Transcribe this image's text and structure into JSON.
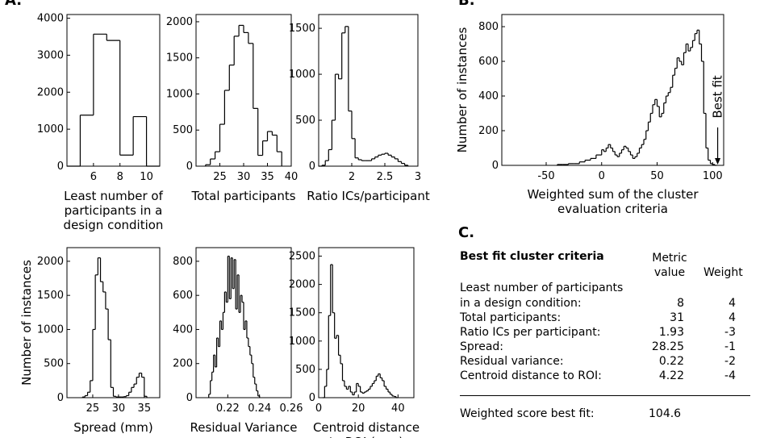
{
  "panel_labels": {
    "a": "A.",
    "b": "B.",
    "c": "C."
  },
  "chart_data": [
    {
      "id": "least-participants",
      "type": "histogram",
      "xlabel": [
        "Least number of",
        "participants in a",
        "design condition"
      ],
      "ylabel": "",
      "xlim": [
        4,
        11
      ],
      "ylim": [
        0,
        4100
      ],
      "xticks": [
        6,
        8,
        10
      ],
      "yticks": [
        0,
        1000,
        2000,
        3000,
        4000
      ],
      "bin_edges": [
        4,
        5,
        6,
        7,
        8,
        9,
        10,
        11
      ],
      "counts": [
        0,
        1380,
        3570,
        3400,
        300,
        1340,
        0
      ]
    },
    {
      "id": "total-participants",
      "type": "histogram",
      "xlabel": [
        "Total participants"
      ],
      "ylabel": "",
      "xlim": [
        20,
        40
      ],
      "ylim": [
        0,
        2100
      ],
      "xticks": [
        25,
        30,
        35,
        40
      ],
      "yticks": [
        0,
        500,
        1000,
        1500,
        2000
      ],
      "bin_edges": [
        22,
        23,
        24,
        25,
        26,
        27,
        28,
        29,
        30,
        31,
        32,
        33,
        34,
        35,
        36,
        37,
        38
      ],
      "counts": [
        20,
        100,
        200,
        580,
        1050,
        1400,
        1800,
        1950,
        1850,
        1700,
        800,
        150,
        350,
        480,
        430,
        200
      ]
    },
    {
      "id": "ratio-ics",
      "type": "histogram",
      "xlabel": [
        "Ratio ICs/participant"
      ],
      "ylabel": "",
      "xlim": [
        1.5,
        3
      ],
      "ylim": [
        0,
        1650
      ],
      "xticks": [
        2,
        2.5,
        3
      ],
      "yticks": [
        0,
        500,
        1000,
        1500
      ],
      "bin_edges": [
        1.5,
        1.55,
        1.6,
        1.65,
        1.7,
        1.75,
        1.8,
        1.85,
        1.9,
        1.95,
        2.0,
        2.05,
        2.1,
        2.15,
        2.2,
        2.25,
        2.3,
        2.35,
        2.4,
        2.45,
        2.5,
        2.55,
        2.6,
        2.65,
        2.7,
        2.75,
        2.8,
        2.85
      ],
      "counts": [
        0,
        10,
        60,
        180,
        500,
        1000,
        950,
        1450,
        1520,
        600,
        300,
        90,
        70,
        60,
        60,
        60,
        80,
        100,
        120,
        130,
        140,
        120,
        100,
        80,
        50,
        30,
        10
      ]
    },
    {
      "id": "spread",
      "type": "histogram",
      "xlabel": [
        "Spread (mm)"
      ],
      "ylabel": "Number of instances",
      "xlim": [
        20,
        38
      ],
      "ylim": [
        0,
        2200
      ],
      "xticks": [
        25,
        30,
        35
      ],
      "yticks": [
        0,
        500,
        1000,
        1500,
        2000
      ],
      "bin_edges": [
        23,
        23.5,
        24,
        24.5,
        25,
        25.5,
        26,
        26.5,
        27,
        27.5,
        28,
        28.5,
        29,
        29.5,
        30,
        30.5,
        31,
        31.5,
        32,
        32.5,
        33,
        33.5,
        34,
        34.5,
        35,
        35.5
      ],
      "counts": [
        10,
        30,
        80,
        250,
        1000,
        1800,
        2050,
        1700,
        1550,
        1300,
        850,
        150,
        20,
        10,
        10,
        10,
        15,
        30,
        80,
        150,
        200,
        300,
        360,
        300,
        20
      ]
    },
    {
      "id": "residual-variance",
      "type": "histogram",
      "xlabel": [
        "Residual Variance"
      ],
      "ylabel": "",
      "xlim": [
        0.2,
        0.26
      ],
      "ylim": [
        0,
        880
      ],
      "xticks": [
        0.22,
        0.24,
        0.26
      ],
      "yticks": [
        0,
        200,
        400,
        600,
        800
      ],
      "bin_edges": [
        0.208,
        0.209,
        0.21,
        0.211,
        0.212,
        0.213,
        0.214,
        0.215,
        0.216,
        0.217,
        0.218,
        0.219,
        0.22,
        0.221,
        0.222,
        0.223,
        0.224,
        0.225,
        0.226,
        0.227,
        0.228,
        0.229,
        0.23,
        0.231,
        0.232,
        0.233,
        0.234,
        0.235,
        0.236,
        0.237,
        0.238,
        0.239,
        0.24
      ],
      "counts": [
        20,
        100,
        150,
        250,
        180,
        350,
        300,
        450,
        400,
        500,
        620,
        560,
        830,
        580,
        820,
        640,
        810,
        520,
        720,
        500,
        600,
        560,
        400,
        450,
        350,
        300,
        250,
        200,
        120,
        80,
        40,
        10
      ]
    },
    {
      "id": "centroid-distance",
      "type": "histogram",
      "xlabel": [
        "Centroid distance",
        "to ROI (mm)"
      ],
      "ylabel": "",
      "xlim": [
        0,
        48
      ],
      "ylim": [
        0,
        2650
      ],
      "xticks": [
        0,
        20,
        40
      ],
      "yticks": [
        0,
        500,
        1000,
        1500,
        2000,
        2500
      ],
      "bin_edges": [
        2,
        3,
        4,
        5,
        6,
        7,
        8,
        9,
        10,
        11,
        12,
        13,
        14,
        15,
        16,
        17,
        18,
        19,
        20,
        21,
        22,
        23,
        24,
        25,
        26,
        27,
        28,
        29,
        30,
        31,
        32,
        33,
        34,
        35,
        36,
        37,
        38,
        39,
        40
      ],
      "counts": [
        0,
        200,
        500,
        1450,
        2350,
        1500,
        1050,
        1100,
        750,
        600,
        300,
        200,
        150,
        200,
        100,
        50,
        100,
        250,
        200,
        100,
        80,
        100,
        120,
        150,
        200,
        250,
        300,
        380,
        420,
        350,
        300,
        200,
        150,
        100,
        60,
        30,
        20,
        0
      ]
    },
    {
      "id": "weighted-sum",
      "type": "histogram",
      "xlabel": [
        "Weighted sum of the cluster",
        "evaluation criteria"
      ],
      "ylabel": "Number of instances",
      "xlim": [
        -90,
        110
      ],
      "ylim": [
        0,
        870
      ],
      "xticks": [
        -50,
        0,
        50,
        100
      ],
      "yticks": [
        0,
        200,
        400,
        600,
        800
      ],
      "annotation": {
        "text": "Best fit",
        "x": 104.6
      },
      "bin_edges": [
        -40,
        -35,
        -30,
        -25,
        -20,
        -15,
        -10,
        -5,
        0,
        2,
        4,
        6,
        8,
        10,
        12,
        14,
        16,
        18,
        20,
        22,
        24,
        26,
        28,
        30,
        32,
        34,
        36,
        38,
        40,
        42,
        44,
        46,
        48,
        50,
        52,
        54,
        56,
        58,
        60,
        62,
        64,
        66,
        68,
        70,
        72,
        74,
        76,
        78,
        80,
        82,
        84,
        86,
        88,
        90,
        92,
        94,
        96,
        98,
        100,
        102,
        104
      ],
      "counts": [
        5,
        5,
        10,
        10,
        20,
        30,
        40,
        60,
        90,
        80,
        100,
        120,
        100,
        80,
        60,
        50,
        70,
        90,
        110,
        100,
        80,
        60,
        40,
        50,
        70,
        100,
        120,
        150,
        200,
        250,
        300,
        350,
        380,
        340,
        280,
        300,
        360,
        400,
        420,
        450,
        520,
        560,
        620,
        600,
        580,
        650,
        700,
        660,
        680,
        720,
        760,
        780,
        700,
        600,
        300,
        100,
        30,
        10,
        5,
        0
      ]
    }
  ],
  "table": {
    "title": "Best fit cluster criteria",
    "col_metric": [
      "Metric",
      "value"
    ],
    "col_weight": "Weight",
    "rows": [
      {
        "label": [
          "Least number of participants",
          "in a design condition:"
        ],
        "value": "8",
        "weight": "4"
      },
      {
        "label": [
          "Total participants:"
        ],
        "value": "31",
        "weight": "4"
      },
      {
        "label": [
          "Ratio ICs per participant:"
        ],
        "value": "1.93",
        "weight": "-3"
      },
      {
        "label": [
          "Spread:"
        ],
        "value": "28.25",
        "weight": "-1"
      },
      {
        "label": [
          "Residual variance:"
        ],
        "value": "0.22",
        "weight": "-2"
      },
      {
        "label": [
          "Centroid distance to ROI:"
        ],
        "value": "4.22",
        "weight": "-4"
      }
    ],
    "score_label": "Weighted score best fit:",
    "score_value": "104.6"
  }
}
